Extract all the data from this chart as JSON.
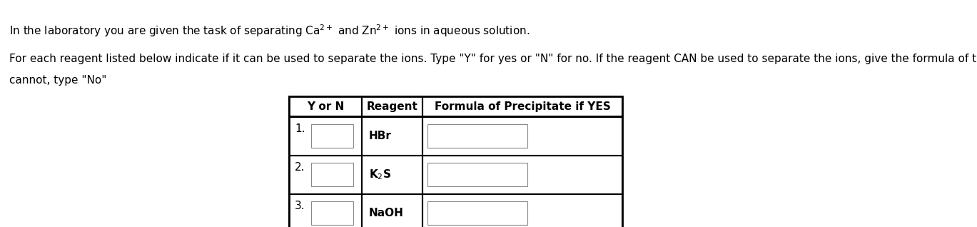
{
  "line1": "In the laboratory you are given the task of separating Ca$^{2+}$ and Zn$^{2+}$ ions in aqueous solution.",
  "line2a": "For each reagent listed below indicate if it can be used to separate the ions. Type \"Y\" for yes or \"N\" for no. If the reagent CAN be used to separate the ions, give the formula of the precipitate. If it",
  "line2b": "cannot, type \"No\"",
  "table_header_col1": "Y or N",
  "table_header_col2": "Reagent",
  "table_header_col3": "Formula of Precipitate if YES",
  "reagents": [
    "HBr",
    "K$_2$S",
    "NaOH"
  ],
  "row_numbers": [
    "1.",
    "2.",
    "3."
  ],
  "fig_width": 13.69,
  "fig_height": 3.18,
  "bg_color": "#ffffff",
  "text_color": "#000000",
  "body_fontsize": 11,
  "table_fontsize": 11
}
